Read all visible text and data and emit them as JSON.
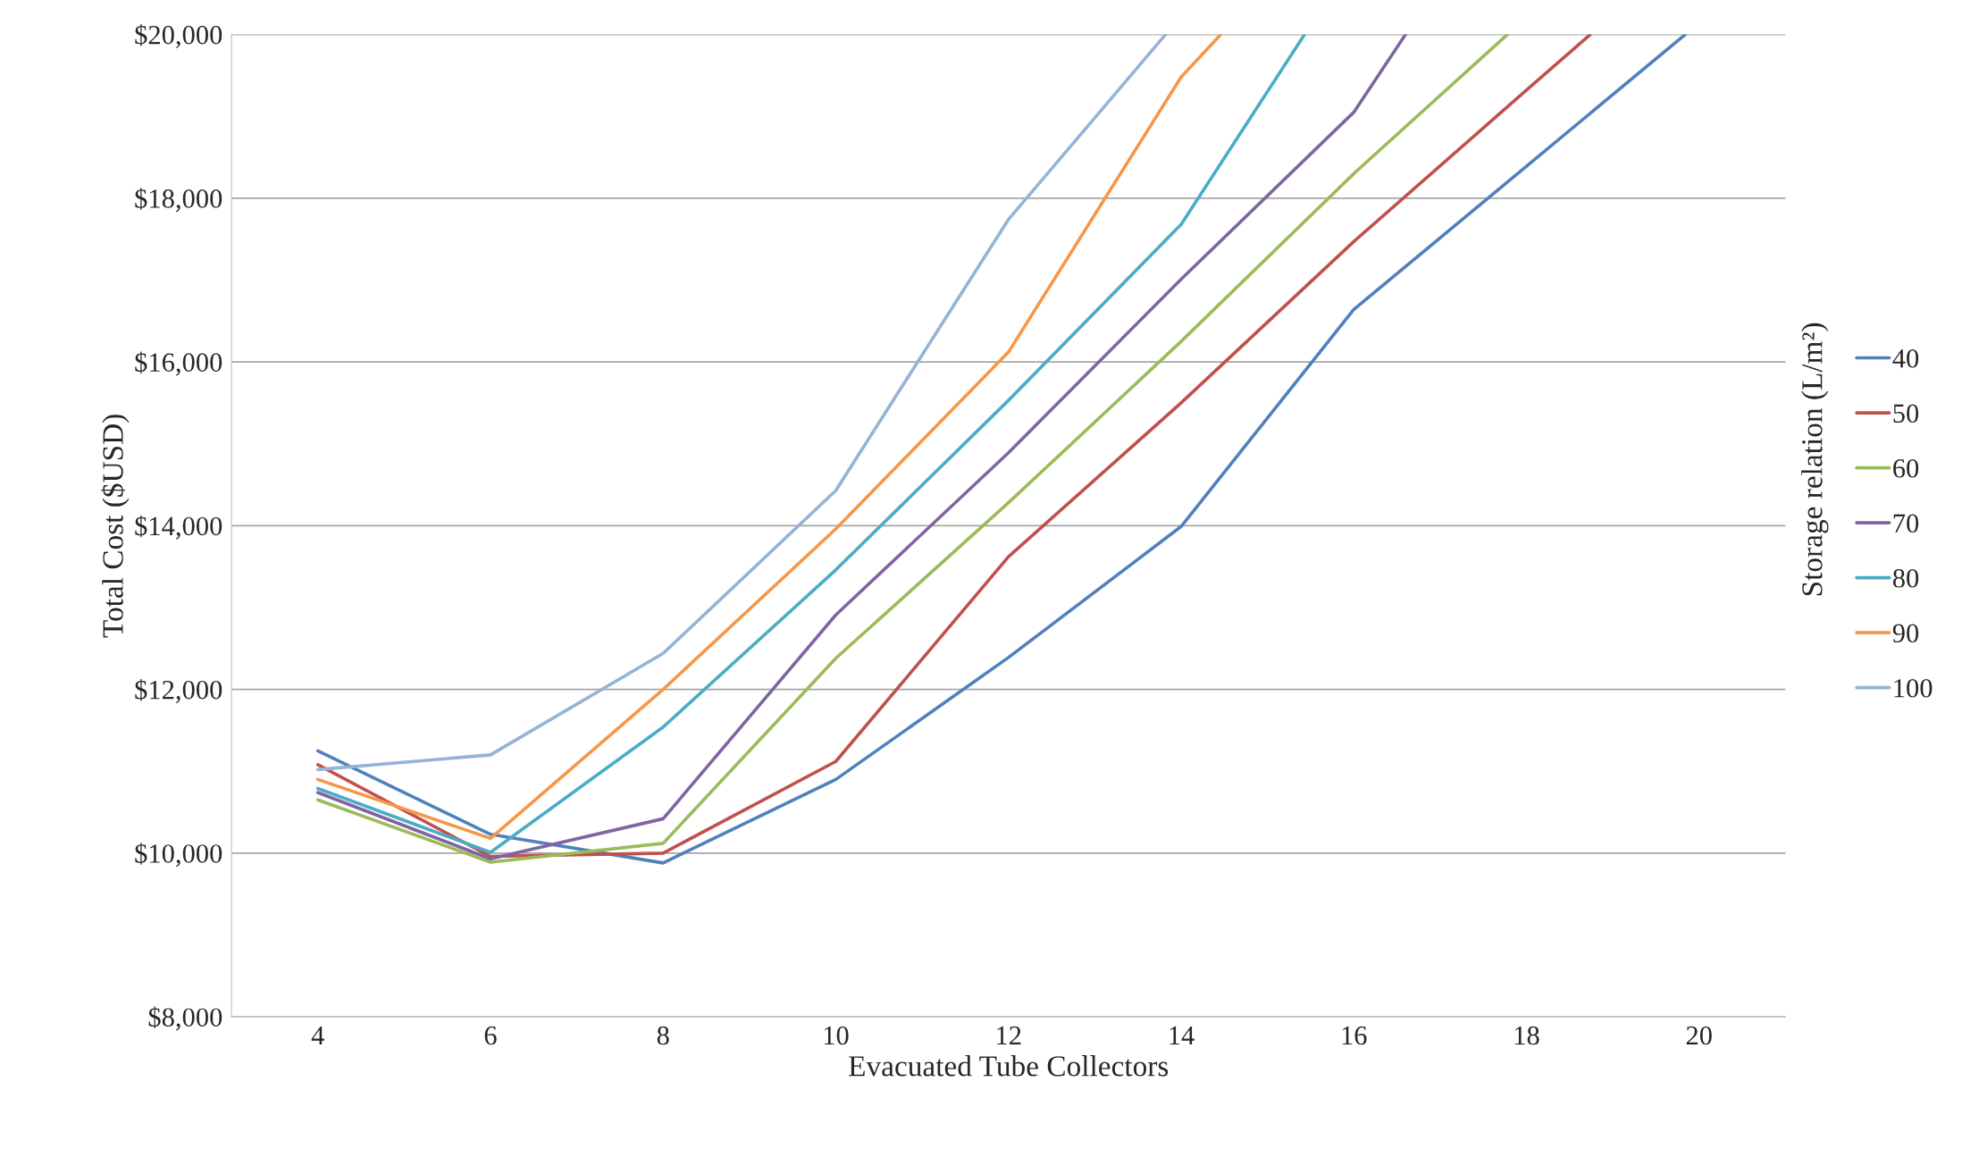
{
  "chart_data": {
    "type": "line",
    "xlabel": "Evacuated Tube Collectors",
    "ylabel": "Total Cost ($USD)",
    "legend_title": "Storage relation (L/m²)",
    "xlim": [
      3,
      21
    ],
    "xticks": [
      4,
      6,
      8,
      10,
      12,
      14,
      16,
      18,
      20
    ],
    "ylim": [
      8000,
      20000
    ],
    "yticks": [
      {
        "value": 8000,
        "label": "$8,000"
      },
      {
        "value": 10000,
        "label": "$10,000"
      },
      {
        "value": 12000,
        "label": "$12,000"
      },
      {
        "value": 14000,
        "label": "$14,000"
      },
      {
        "value": 16000,
        "label": "$16,000"
      },
      {
        "value": 18000,
        "label": "$18,000"
      },
      {
        "value": 20000,
        "label": "$20,000"
      }
    ],
    "grid": "y",
    "legend": "right",
    "marker": "none",
    "line_style": "solid",
    "series": [
      {
        "name": "40",
        "color": "#4f81bd",
        "x": [
          4,
          6,
          8,
          10,
          12,
          14,
          16,
          18,
          19.84
        ],
        "values": [
          11250,
          10230,
          9880,
          10900,
          12390,
          13990,
          16640,
          18390,
          20000
        ]
      },
      {
        "name": "50",
        "color": "#c0504d",
        "x": [
          4,
          6,
          8,
          10,
          12,
          14,
          16,
          18,
          18.74
        ],
        "values": [
          11080,
          9960,
          10000,
          11120,
          13620,
          15500,
          17470,
          19320,
          20000
        ]
      },
      {
        "name": "60",
        "color": "#9bbb59",
        "x": [
          4,
          6,
          8,
          10,
          12,
          14,
          16,
          17.78
        ],
        "values": [
          10650,
          9890,
          10120,
          12380,
          14280,
          16250,
          18300,
          20000
        ]
      },
      {
        "name": "70",
        "color": "#8064a2",
        "x": [
          4,
          6,
          8,
          10,
          12,
          14,
          16,
          16.6
        ],
        "values": [
          10740,
          9930,
          10420,
          12910,
          14890,
          17010,
          19050,
          20000
        ]
      },
      {
        "name": "80",
        "color": "#4bacc6",
        "x": [
          4,
          6,
          8,
          10,
          12,
          14,
          15.43
        ],
        "values": [
          10790,
          10010,
          11540,
          13460,
          15530,
          17680,
          20000
        ]
      },
      {
        "name": "90",
        "color": "#f79646",
        "x": [
          4,
          6,
          8,
          10,
          12,
          14,
          14.46
        ],
        "values": [
          10900,
          10180,
          12000,
          13960,
          16120,
          19480,
          20000
        ]
      },
      {
        "name": "100",
        "color": "#95b3d7",
        "x": [
          4,
          6,
          8,
          10,
          12,
          13.82
        ],
        "values": [
          11020,
          11200,
          12440,
          14430,
          17740,
          20000
        ]
      }
    ]
  }
}
